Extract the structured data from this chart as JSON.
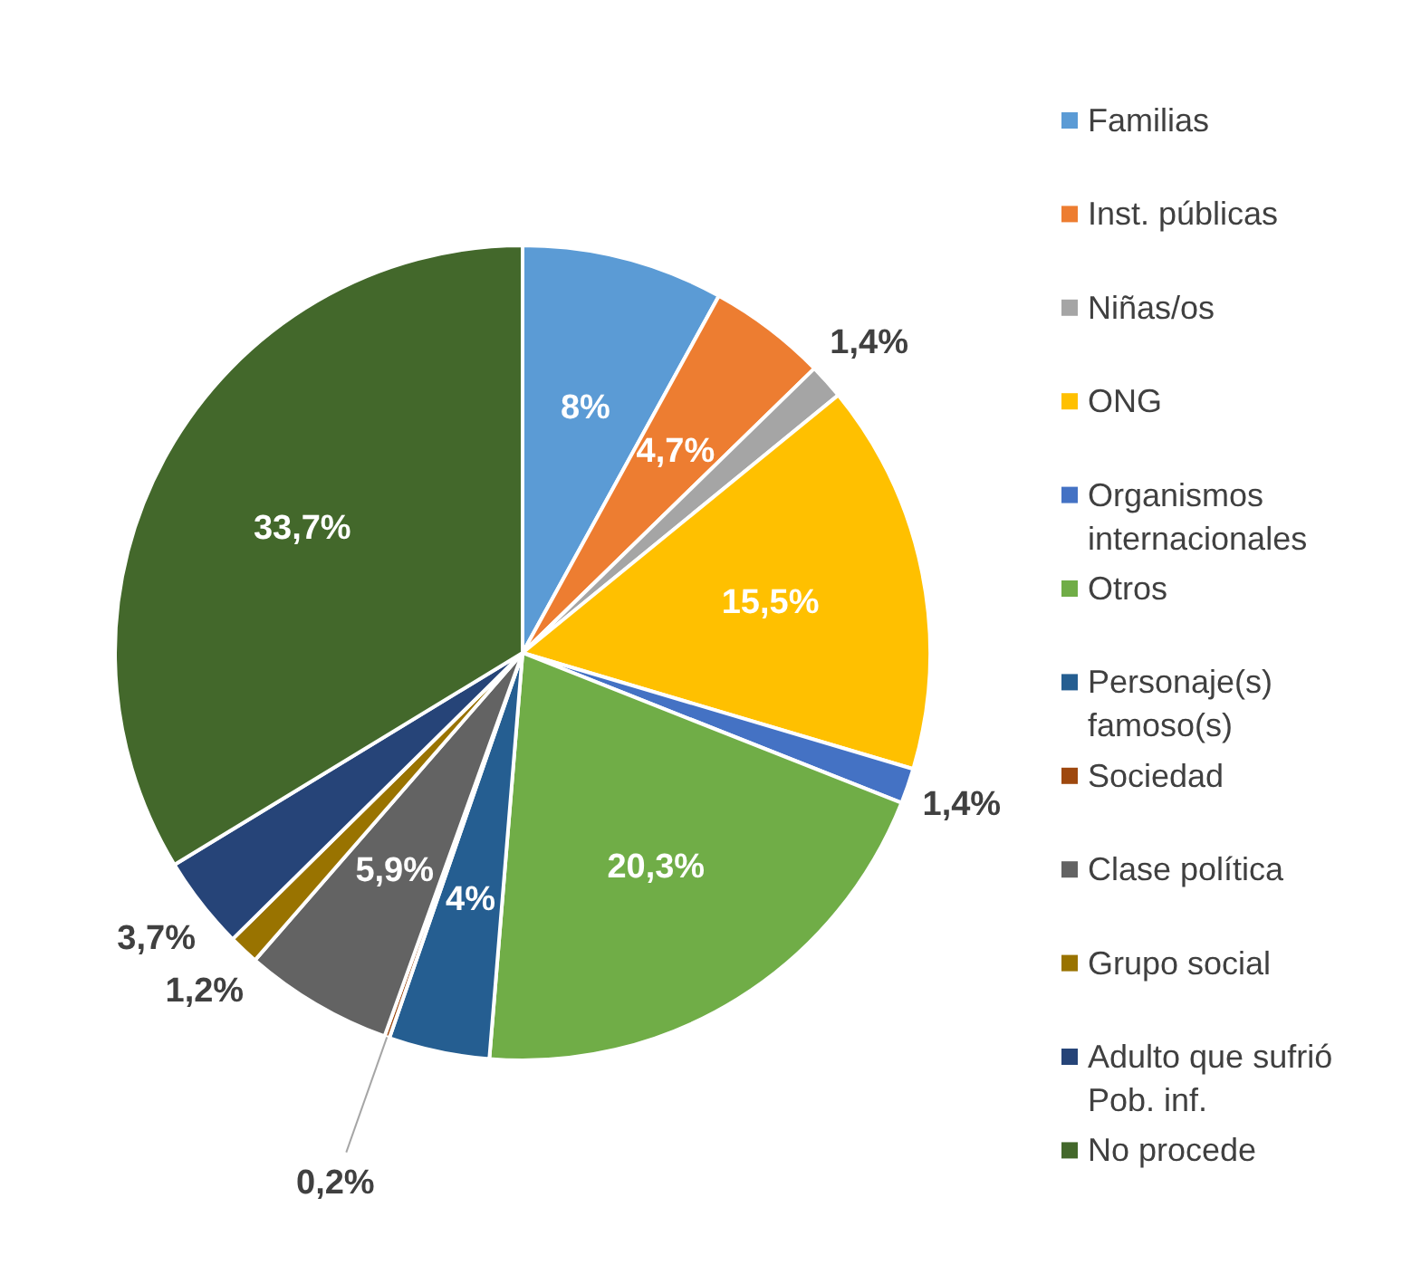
{
  "chart_data": {
    "type": "pie",
    "categories": [
      "Familias",
      "Inst. públicas",
      "Niñas/os",
      "ONG",
      "Organismos internacionales",
      "Otros",
      "Personaje(s) famoso(s)",
      "Sociedad",
      "Clase política",
      "Grupo social",
      "Adulto que sufrió Pob. inf.",
      "No procede"
    ],
    "values": [
      8,
      4.7,
      1.4,
      15.5,
      1.4,
      20.3,
      4,
      0.2,
      5.9,
      1.2,
      3.7,
      33.7
    ],
    "value_labels": [
      "8%",
      "4,7%",
      "1,4%",
      "15,5%",
      "1,4%",
      "20,3%",
      "4%",
      "0,2%",
      "5,9%",
      "1,2%",
      "3,7%",
      "33,7%"
    ],
    "colors": [
      "#5b9bd5",
      "#ed7d31",
      "#a5a5a5",
      "#ffc000",
      "#4472c4",
      "#70ad47",
      "#255e91",
      "#9e480e",
      "#636363",
      "#997300",
      "#264478",
      "#43682b"
    ],
    "legend": "right"
  }
}
